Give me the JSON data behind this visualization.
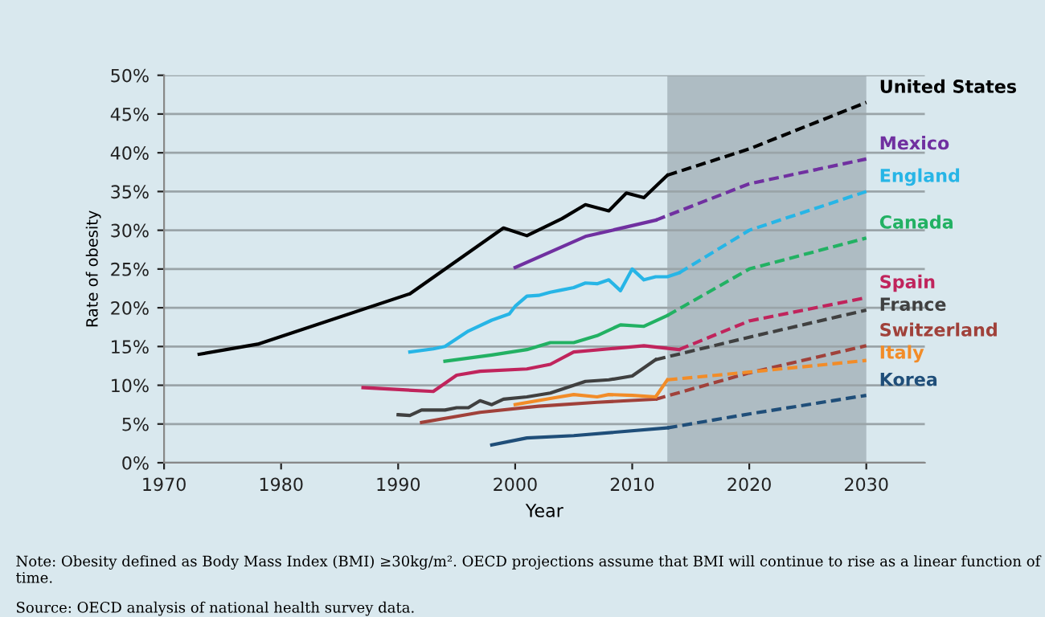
{
  "chart_data": {
    "type": "line",
    "xlabel": "Year",
    "ylabel": "Rate of obesity",
    "xlim": [
      1970,
      2035
    ],
    "xticks": [
      1970,
      1980,
      1990,
      2000,
      2010,
      2020,
      2030
    ],
    "ylim": [
      0,
      50
    ],
    "yticks": [
      {
        "value": 0,
        "label": "0%"
      },
      {
        "value": 5,
        "label": "5%"
      },
      {
        "value": 10,
        "label": "10%"
      },
      {
        "value": 15,
        "label": "15%"
      },
      {
        "value": 20,
        "label": "20%"
      },
      {
        "value": 25,
        "label": "25%"
      },
      {
        "value": 30,
        "label": "30%"
      },
      {
        "value": 35,
        "label": "35%"
      },
      {
        "value": 40,
        "label": "40%"
      },
      {
        "value": 45,
        "label": "45%"
      },
      {
        "value": 50,
        "label": "50%"
      }
    ],
    "grid": "y",
    "legend": false,
    "marker": "none",
    "bands": [
      {
        "axis": "x",
        "from": 2013,
        "to": 2030,
        "label": null,
        "color": "#aebcc3"
      }
    ],
    "series": [
      {
        "color": "#000000",
        "line_style": "solid",
        "x": [
          1973,
          1978,
          1991,
          1999,
          2001,
          2004,
          2006,
          2008,
          2009.5,
          2011,
          2013
        ],
        "values": [
          14,
          15.3,
          21.8,
          30.3,
          29.3,
          31.5,
          33.3,
          32.5,
          34.8,
          34.2,
          37.1
        ]
      },
      {
        "name": "United States",
        "color": "#000000",
        "line_style": "dashed",
        "x": [
          2013,
          2020,
          2030
        ],
        "values": [
          37.1,
          40.5,
          46.5
        ]
      },
      {
        "color": "#7030a0",
        "line_style": "solid",
        "x": [
          2000,
          2006,
          2012
        ],
        "values": [
          25.2,
          29.2,
          31.3
        ]
      },
      {
        "name": "Mexico",
        "color": "#7030a0",
        "line_style": "dashed",
        "x": [
          2012,
          2020,
          2030
        ],
        "values": [
          31.3,
          36,
          39.2
        ]
      },
      {
        "color": "#27b5e6",
        "line_style": "solid",
        "x": [
          1991,
          1993,
          1994,
          1996,
          1998,
          1999.5,
          2000,
          2001,
          2002,
          2003,
          2004,
          2005,
          2006,
          2007,
          2008,
          2009,
          2010,
          2011,
          2012,
          2013,
          2014
        ],
        "values": [
          14.3,
          14.7,
          15,
          17,
          18.4,
          19.2,
          20.2,
          21.5,
          21.6,
          22,
          22.3,
          22.6,
          23.2,
          23.1,
          23.6,
          22.2,
          25,
          23.6,
          24,
          24,
          24.5
        ]
      },
      {
        "name": "England",
        "color": "#27b5e6",
        "line_style": "dashed",
        "x": [
          2014,
          2020,
          2030
        ],
        "values": [
          24.5,
          30,
          35
        ]
      },
      {
        "color": "#22b163",
        "line_style": "solid",
        "x": [
          1994,
          1998,
          2001,
          2003,
          2005,
          2007,
          2009,
          2011,
          2013
        ],
        "values": [
          13.1,
          13.9,
          14.6,
          15.5,
          15.5,
          16.4,
          17.8,
          17.6,
          19
        ]
      },
      {
        "name": "Canada",
        "color": "#22b163",
        "line_style": "dashed",
        "x": [
          2013,
          2020,
          2030
        ],
        "values": [
          19,
          25,
          29
        ]
      },
      {
        "color": "#c0245c",
        "line_style": "solid",
        "x": [
          1987,
          1993,
          1995,
          1997,
          2001,
          2003,
          2005,
          2008,
          2011,
          2014
        ],
        "values": [
          9.7,
          9.2,
          11.3,
          11.8,
          12.1,
          12.7,
          14.3,
          14.7,
          15.1,
          14.6
        ]
      },
      {
        "name": "Spain",
        "color": "#c0245c",
        "line_style": "dashed",
        "x": [
          2014,
          2020,
          2030
        ],
        "values": [
          14.6,
          18.3,
          21.3
        ]
      },
      {
        "color": "#404040",
        "line_style": "solid",
        "x": [
          1990,
          1991,
          1992,
          1994,
          1995,
          1996,
          1997,
          1998,
          1999,
          2001,
          2003,
          2006,
          2008,
          2010,
          2012
        ],
        "values": [
          6.2,
          6.1,
          6.8,
          6.8,
          7.1,
          7.1,
          8.0,
          7.5,
          8.2,
          8.5,
          9.0,
          10.5,
          10.7,
          11.2,
          13.3
        ]
      },
      {
        "name": "France",
        "color": "#404040",
        "line_style": "dashed",
        "x": [
          2012,
          2020,
          2030
        ],
        "values": [
          13.3,
          16.2,
          19.7
        ]
      },
      {
        "color": "#a0413a",
        "line_style": "solid",
        "x": [
          1992,
          1997,
          2002,
          2007,
          2012
        ],
        "values": [
          5.2,
          6.5,
          7.3,
          7.8,
          8.2
        ]
      },
      {
        "name": "Switzerland",
        "color": "#a0413a",
        "line_style": "dashed",
        "x": [
          2012,
          2020,
          2030
        ],
        "values": [
          8.2,
          11.6,
          15.1
        ]
      },
      {
        "color": "#f28c28",
        "line_style": "solid",
        "x": [
          2000,
          2003,
          2005,
          2007,
          2008,
          2010,
          2012,
          2013
        ],
        "values": [
          7.5,
          8.3,
          8.8,
          8.5,
          8.8,
          8.7,
          8.5,
          10.7
        ]
      },
      {
        "name": "Italy",
        "color": "#f28c28",
        "line_style": "dashed",
        "x": [
          2013,
          2020,
          2030
        ],
        "values": [
          10.7,
          11.7,
          13.2
        ]
      },
      {
        "color": "#1f4e79",
        "line_style": "solid",
        "x": [
          1998,
          2001,
          2005,
          2013
        ],
        "values": [
          2.3,
          3.2,
          3.5,
          4.5
        ]
      },
      {
        "name": "Korea",
        "color": "#1f4e79",
        "line_style": "dashed",
        "x": [
          2013,
          2020,
          2030
        ],
        "values": [
          4.5,
          6.3,
          8.7
        ]
      }
    ],
    "annotations": [
      "Note: Obesity defined as Body Mass Index (BMI) ≥30kg/m². OECD projections assume that BMI will continue to rise as a linear function of time.",
      "Source: OECD analysis of national health survey data."
    ]
  }
}
